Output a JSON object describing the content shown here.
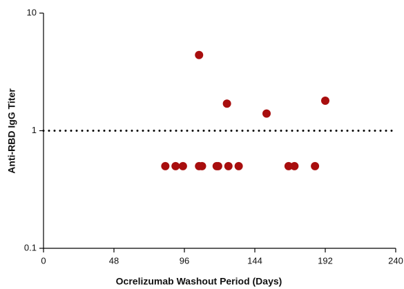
{
  "chart_data": {
    "type": "scatter",
    "x_label": "Ocrelizumab Washout Period (Days)",
    "y_label": "Anti-RBD IgG Titer",
    "x": [
      83,
      90,
      95,
      106,
      106,
      108,
      118,
      119,
      125,
      126,
      133,
      152,
      167,
      171,
      185,
      192
    ],
    "values": [
      0.5,
      0.5,
      0.5,
      4.4,
      0.5,
      0.5,
      0.5,
      0.5,
      1.7,
      0.5,
      0.5,
      1.4,
      0.5,
      0.5,
      0.5,
      1.8
    ],
    "color": "#a80e0e",
    "xlim": [
      0,
      240
    ],
    "xticks": [
      0,
      48,
      96,
      144,
      192,
      240
    ],
    "ylim": [
      0.1,
      10
    ],
    "yticks": [
      0.1,
      1,
      10
    ],
    "y_log": true,
    "reference_line": 1
  }
}
